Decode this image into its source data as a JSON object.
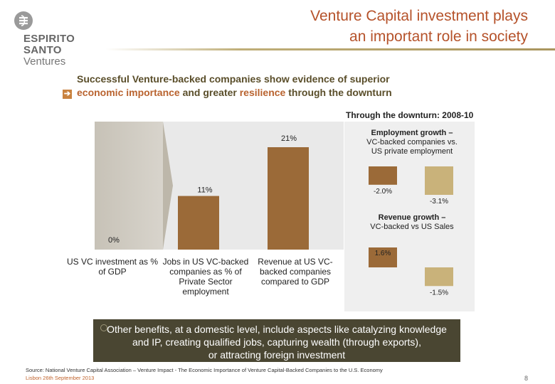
{
  "brand": {
    "line1": "ESPIRITO",
    "line2": "SANTO",
    "line3": "Ventures"
  },
  "header": {
    "title_line1": "Venture Capital investment plays",
    "title_line2": "an important role in society"
  },
  "headline": {
    "part1": "Successful Venture-backed companies show evidence of superior",
    "part2_highlight": "economic importance",
    "part3": " and greater ",
    "part4_highlight": "resilience",
    "part5": " through the downturn"
  },
  "period_label": "Through the downturn: 2008-10",
  "employment_panel": {
    "title_bold": "Employment growth –",
    "title_sub1": "VC-backed companies vs.",
    "title_sub2": "US private employment"
  },
  "revenue_panel": {
    "title_bold": "Revenue growth –",
    "title_sub": "VC-backed vs US Sales"
  },
  "note": {
    "line1": "Other benefits, at a domestic level, include aspects like catalyzing knowledge",
    "line2": "and IP, creating qualified jobs, capturing wealth (through exports),",
    "line3": "or attracting foreign investment"
  },
  "footer": {
    "source": "Source: National Venture Capital Association – Venture Impact - The Economic Importance of Venture Capital-Backed Companies to the U.S. Economy",
    "date": "Lisbon 26th September 2013",
    "page": "8"
  },
  "colors": {
    "title": "#b5522a",
    "bar_dark": "#9b6a38",
    "bar_light": "#c9b27a",
    "highlight": "#b9632f",
    "note_bg": "#4a4632"
  },
  "chart_data": [
    {
      "type": "bar",
      "categories": [
        "US VC investment as % of GDP",
        "Jobs in US VC-backed companies as % of Private Sector employment",
        "Revenue at US VC-backed companies compared to GDP"
      ],
      "values": [
        0,
        11,
        21
      ],
      "value_labels": [
        "0%",
        "11%",
        "21%"
      ],
      "ylim": [
        0,
        25
      ]
    },
    {
      "type": "bar",
      "title": "Employment growth – VC-backed companies vs. US private employment",
      "categories": [
        "VC-backed companies",
        "US private employment"
      ],
      "values": [
        -2.0,
        -3.1
      ],
      "value_labels": [
        "-2.0%",
        "-3.1%"
      ],
      "ylim": [
        -3.5,
        0
      ]
    },
    {
      "type": "bar",
      "title": "Revenue growth – VC-backed vs US Sales",
      "categories": [
        "VC-backed",
        "US Sales"
      ],
      "values": [
        1.6,
        -1.5
      ],
      "value_labels": [
        "1.6%",
        "-1.5%"
      ],
      "ylim": [
        -2.0,
        2.0
      ]
    }
  ]
}
